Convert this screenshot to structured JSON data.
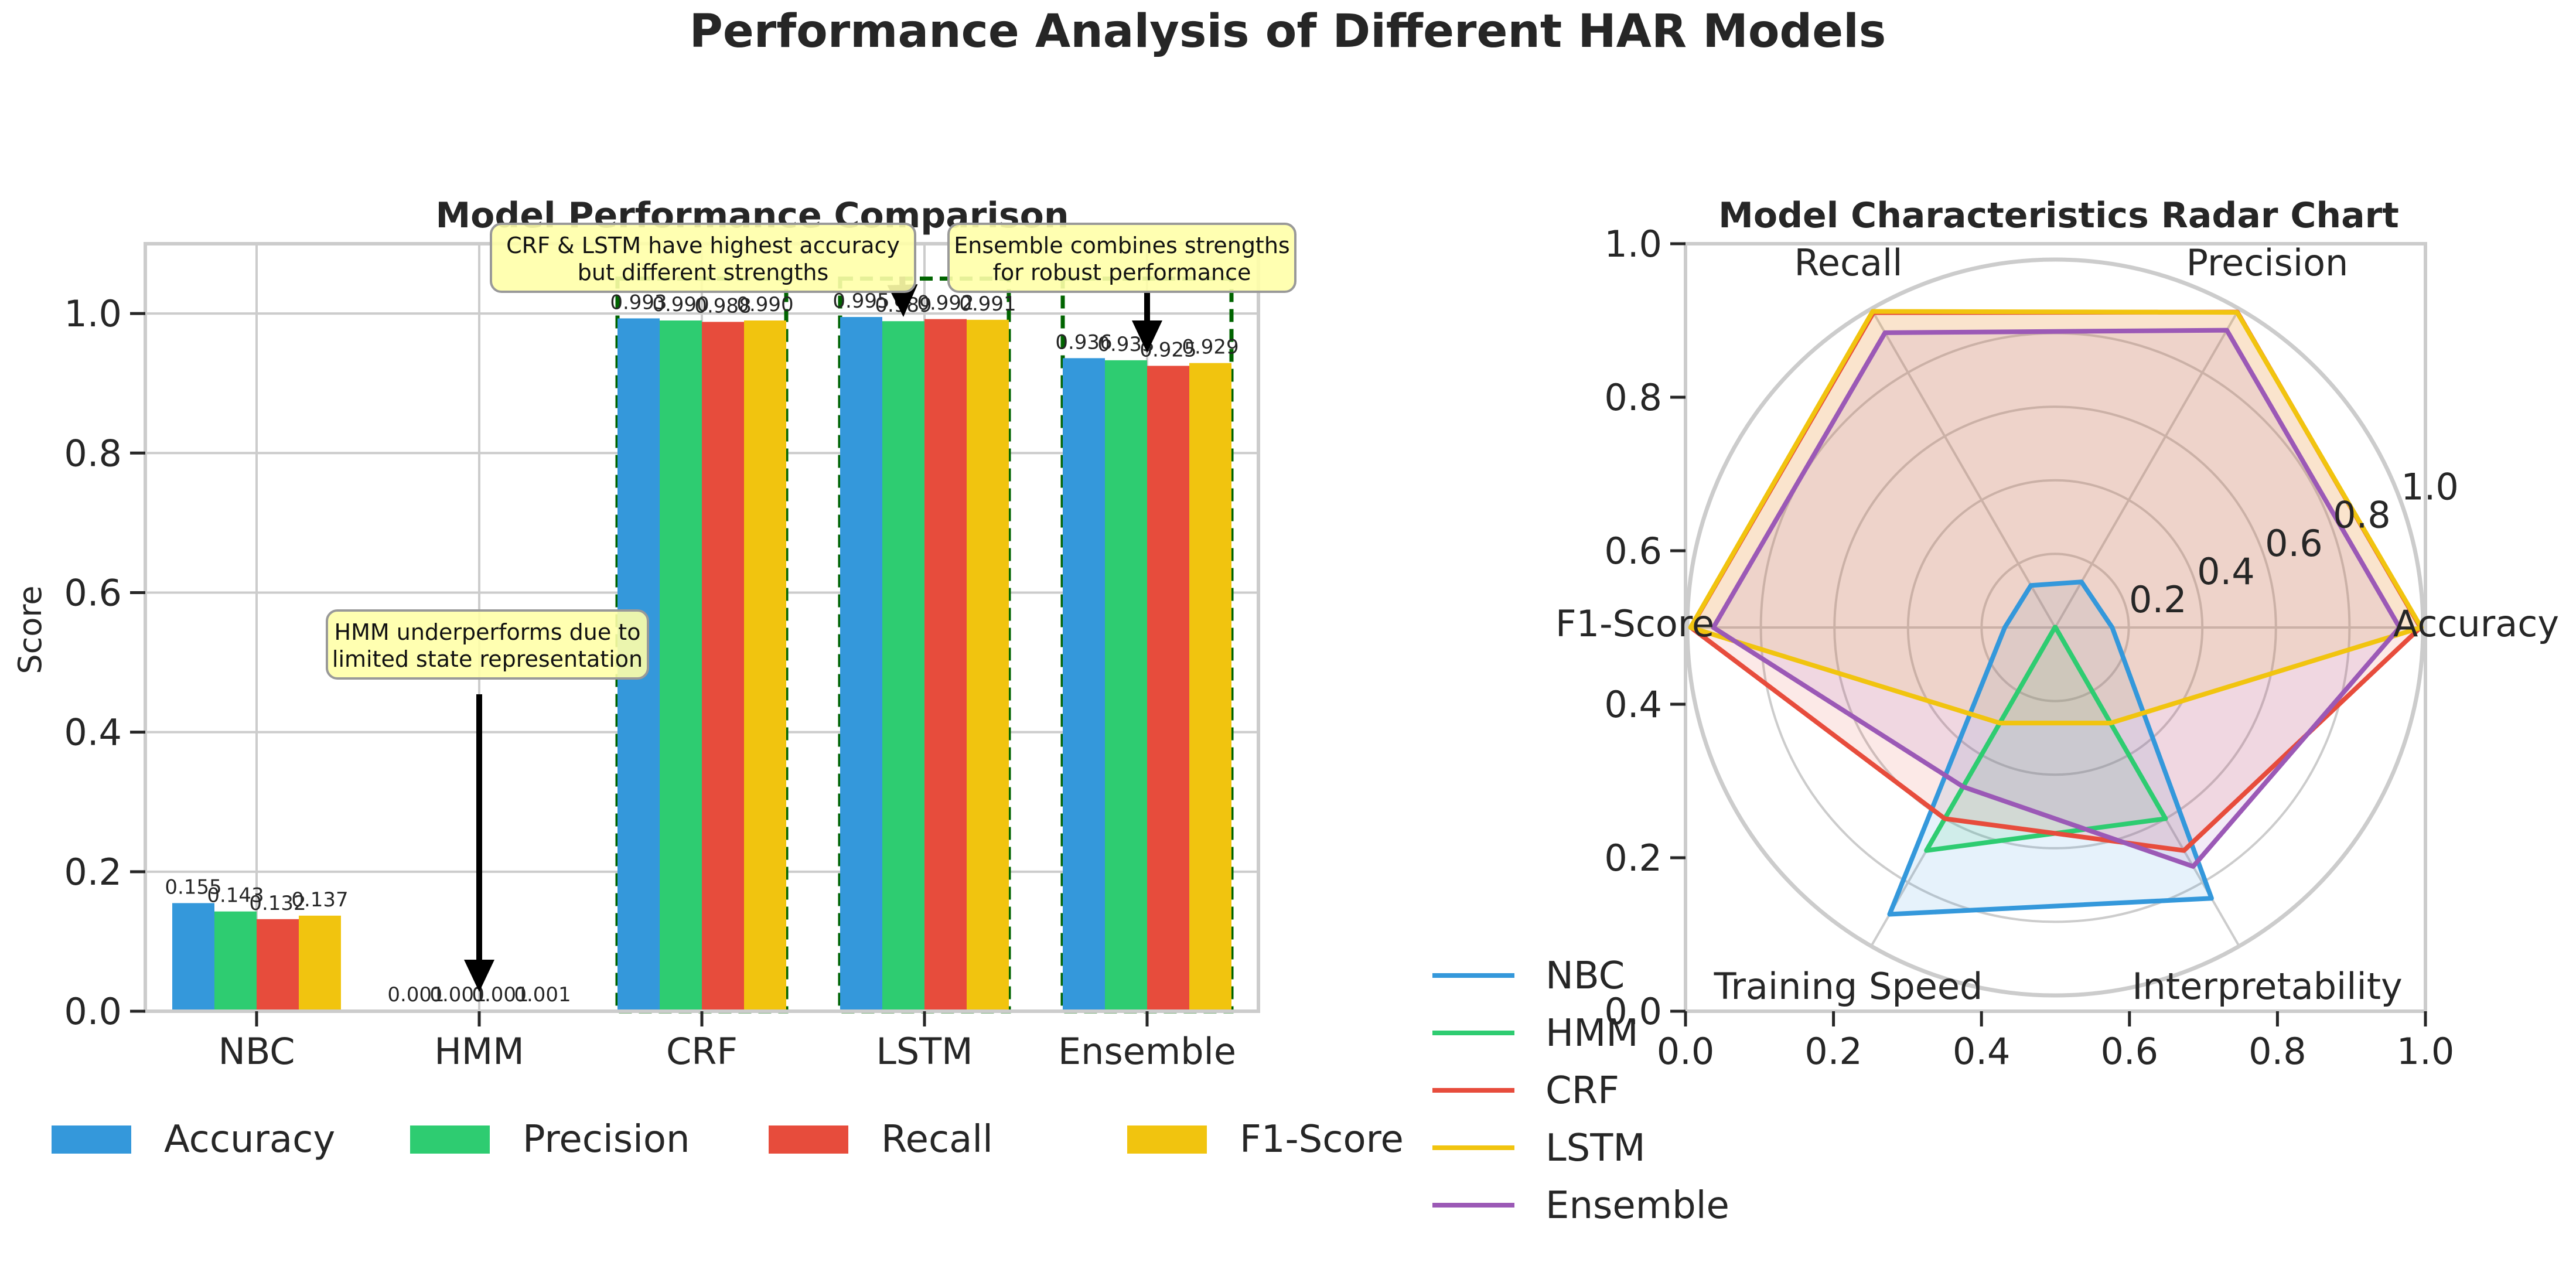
{
  "figure": {
    "suptitle": "Performance Analysis of Different HAR Models"
  },
  "colors": {
    "accuracy": "#3498db",
    "precision": "#2ecc71",
    "recall": "#e74c3c",
    "f1": "#f1c40f",
    "ensemble": "#9b59b6",
    "highlight": "#006400",
    "annotation_fill": "#ffffa8",
    "grid": "#cccccc",
    "text": "#262626"
  },
  "chart_data": [
    {
      "type": "bar",
      "title": "Model Performance Comparison",
      "xlabel": "",
      "ylabel": "Score",
      "ylim": [
        0,
        1.1
      ],
      "yticks": [
        "0.0",
        "0.2",
        "0.4",
        "0.6",
        "0.8",
        "1.0"
      ],
      "categories": [
        "NBC",
        "HMM",
        "CRF",
        "LSTM",
        "Ensemble"
      ],
      "grid": true,
      "legend_placement": "bottom",
      "series": [
        {
          "name": "Accuracy",
          "color": "#3498db",
          "values": [
            0.155,
            0.001,
            0.993,
            0.995,
            0.936
          ],
          "labels": [
            "0.155",
            "0.001",
            "0.993",
            "0.995",
            "0.936"
          ]
        },
        {
          "name": "Precision",
          "color": "#2ecc71",
          "values": [
            0.143,
            0.001,
            0.99,
            0.989,
            0.933
          ],
          "labels": [
            "0.143",
            "0.001",
            "0.990",
            "0.989",
            "0.933"
          ]
        },
        {
          "name": "Recall",
          "color": "#e74c3c",
          "values": [
            0.132,
            0.001,
            0.988,
            0.992,
            0.925
          ],
          "labels": [
            "0.132",
            "0.001",
            "0.988",
            "0.992",
            "0.925"
          ]
        },
        {
          "name": "F1-Score",
          "color": "#f1c40f",
          "values": [
            0.137,
            0.001,
            0.99,
            0.991,
            0.929
          ],
          "labels": [
            "0.137",
            "0.001",
            "0.990",
            "0.991",
            "0.929"
          ]
        }
      ],
      "highlighted_categories": [
        "CRF",
        "LSTM",
        "Ensemble"
      ],
      "annotations": [
        {
          "text": "HMM underperforms due to\nlimited state representation",
          "target_category": "HMM",
          "target_value": 0.001
        },
        {
          "text": "CRF & LSTM have highest accuracy\nbut different strengths",
          "target_category": "LSTM",
          "target_value": 0.995
        },
        {
          "text": "Ensemble combines strengths\nfor robust performance",
          "target_category": "Ensemble",
          "target_value": 0.936
        }
      ]
    },
    {
      "type": "radar",
      "title": "Model Characteristics Radar Chart",
      "axes": [
        "Accuracy",
        "Precision",
        "Recall",
        "F1-Score",
        "Training Speed",
        "Interpretability"
      ],
      "rlim": [
        0,
        1.0
      ],
      "rticks": [
        "0.2",
        "0.4",
        "0.6",
        "0.8",
        "1.0"
      ],
      "frame_ticks": {
        "x": [
          "0.0",
          "0.2",
          "0.4",
          "0.6",
          "0.8",
          "1.0"
        ],
        "y": [
          "0.0",
          "0.2",
          "0.4",
          "0.6",
          "0.8",
          "1.0"
        ]
      },
      "legend_placement": "lower-left",
      "series": [
        {
          "name": "NBC",
          "color": "#3498db",
          "values": [
            0.155,
            0.143,
            0.132,
            0.137,
            0.9,
            0.85
          ]
        },
        {
          "name": "HMM",
          "color": "#2ecc71",
          "values": [
            0.001,
            0.001,
            0.001,
            0.001,
            0.7,
            0.6
          ]
        },
        {
          "name": "CRF",
          "color": "#e74c3c",
          "values": [
            0.993,
            0.99,
            0.988,
            0.99,
            0.6,
            0.7
          ]
        },
        {
          "name": "LSTM",
          "color": "#f1c40f",
          "values": [
            0.995,
            0.989,
            0.992,
            0.991,
            0.3,
            0.3
          ]
        },
        {
          "name": "Ensemble",
          "color": "#9b59b6",
          "values": [
            0.936,
            0.933,
            0.925,
            0.929,
            0.5,
            0.75
          ]
        }
      ]
    }
  ]
}
